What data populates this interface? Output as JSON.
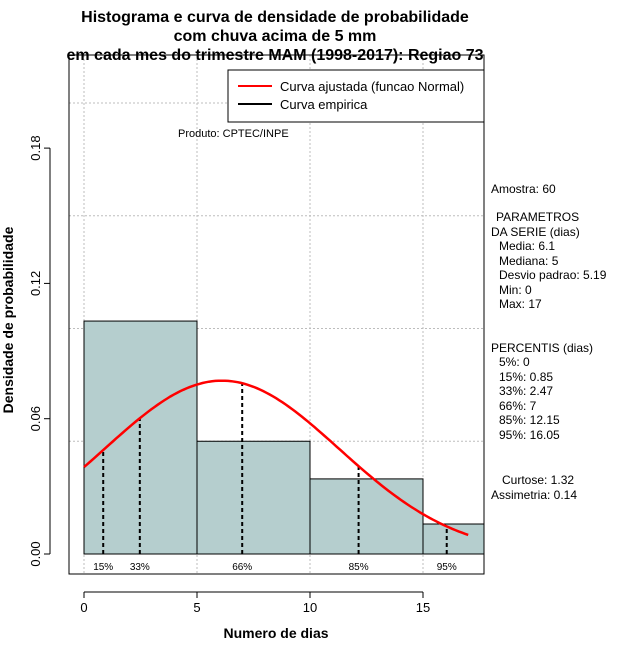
{
  "chart_data": {
    "type": "bar",
    "title_lines": [
      "Histograma e curva de densidade de probabilidade",
      "com chuva acima de 5 mm",
      "em cada mes do trimestre MAM (1998-2017): Regiao 73"
    ],
    "xlabel": "Numero de dias",
    "ylabel": "Densidade de probabilidade",
    "product": "Produto: CPTEC/INPE",
    "xlim": [
      0,
      17.5
    ],
    "ylim": [
      0,
      0.21
    ],
    "xticks": [
      0,
      5,
      10,
      15
    ],
    "yticks": [
      0.0,
      0.06,
      0.12,
      0.18
    ],
    "ytick_labels": [
      "0.00",
      "0.06",
      "0.12",
      "0.18"
    ],
    "grid": true,
    "bins": [
      {
        "x0": 0,
        "x1": 5,
        "density": 0.1033
      },
      {
        "x0": 5,
        "x1": 10,
        "density": 0.05
      },
      {
        "x0": 10,
        "x1": 15,
        "density": 0.0333
      },
      {
        "x0": 15,
        "x1": 20,
        "density": 0.0133
      }
    ],
    "bar_color": "#b5cece",
    "normal_curve": {
      "mean": 6.1,
      "sd": 5.19,
      "x_from": 0,
      "x_to": 17,
      "color": "#ff0000"
    },
    "percentile_lines": [
      {
        "label": "15%",
        "x": 0.85
      },
      {
        "label": "33%",
        "x": 2.47
      },
      {
        "label": "66%",
        "x": 7
      },
      {
        "label": "85%",
        "x": 12.15
      },
      {
        "label": "95%",
        "x": 16.05
      }
    ],
    "legend": {
      "position": "top-right",
      "entries": [
        {
          "label": "Curva ajustada (funcao Normal)",
          "color": "#ff0000"
        },
        {
          "label": "Curva empirica",
          "color": "#000000"
        }
      ]
    }
  },
  "stats_panel": {
    "sample": "Amostra: 60",
    "params_header_1": "PARAMETROS",
    "params_header_2": "DA SERIE (dias)",
    "params": [
      "Media: 6.1",
      "Mediana: 5",
      "Desvio padrao: 5.19",
      "Min: 0",
      "Max: 17"
    ],
    "percentis_header": "PERCENTIS (dias)",
    "percentis": [
      "5%: 0",
      "15%: 0.85",
      "33%: 2.47",
      "66%: 7",
      "85%: 12.15",
      "95%: 16.05"
    ],
    "curtose": "Curtose: 1.32",
    "assimetria": "Assimetria: 0.14"
  }
}
